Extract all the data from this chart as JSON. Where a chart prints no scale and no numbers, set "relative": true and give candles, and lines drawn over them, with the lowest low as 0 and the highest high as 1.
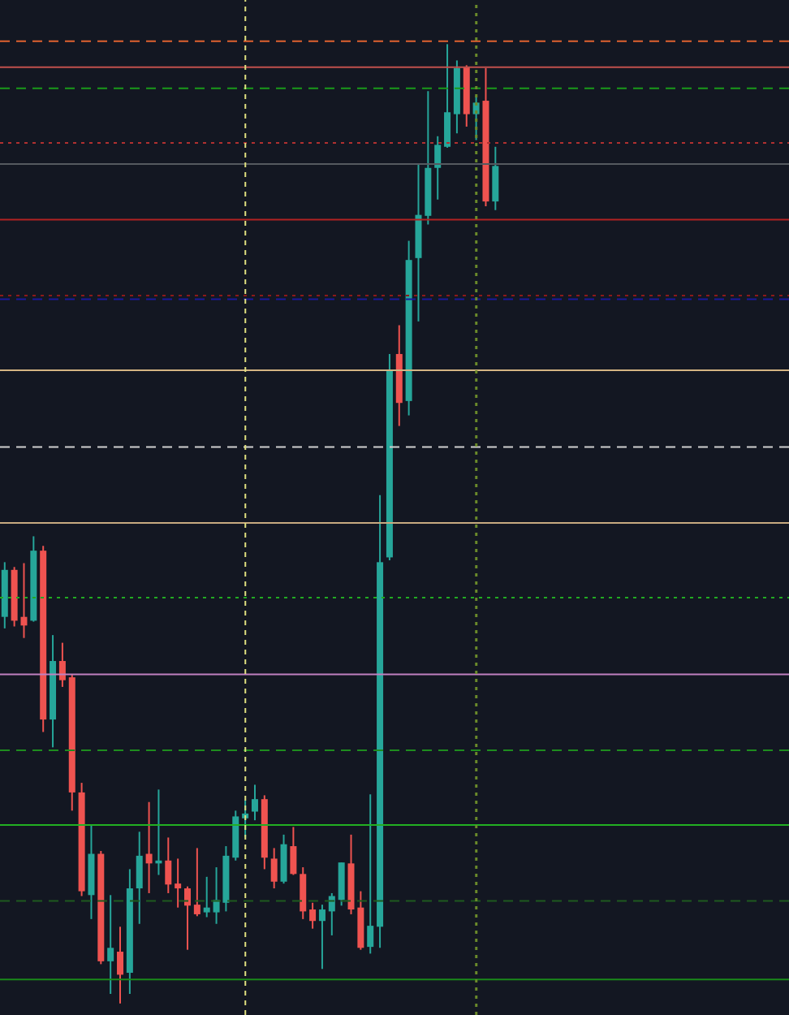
{
  "chart_data": {
    "type": "candlestick",
    "relative": true,
    "categories": [
      null,
      null,
      null,
      null,
      null,
      null,
      null,
      null,
      null,
      null,
      null,
      null,
      null,
      null,
      null,
      null,
      null,
      null,
      null,
      null,
      null,
      null,
      null,
      null,
      null,
      null,
      null,
      null,
      null,
      null,
      null,
      null,
      null,
      null,
      null,
      null,
      null,
      null,
      null,
      null,
      null,
      null,
      null,
      null,
      null,
      null,
      null,
      null,
      null,
      null,
      null,
      null,
      null,
      null,
      null,
      null,
      null,
      null,
      null,
      null,
      null,
      null,
      null,
      null,
      null,
      null,
      null,
      null,
      null,
      null,
      null,
      null,
      null,
      null,
      null,
      null,
      null,
      null,
      null,
      null,
      null,
      null
    ],
    "ohlc": [
      [
        0.403,
        0.46,
        0.391,
        0.452
      ],
      [
        0.452,
        0.455,
        0.393,
        0.399
      ],
      [
        0.403,
        0.459,
        0.381,
        0.394
      ],
      [
        0.399,
        0.487,
        0.398,
        0.472
      ],
      [
        0.472,
        0.477,
        0.283,
        0.296
      ],
      [
        0.296,
        0.384,
        0.267,
        0.357
      ],
      [
        0.357,
        0.376,
        0.33,
        0.337
      ],
      [
        0.34,
        0.343,
        0.201,
        0.22
      ],
      [
        0.22,
        0.23,
        0.112,
        0.117
      ],
      [
        0.113,
        0.186,
        0.088,
        0.156
      ],
      [
        0.156,
        0.159,
        0.041,
        0.044
      ],
      [
        0.044,
        0.113,
        0.01,
        0.058
      ],
      [
        0.054,
        0.08,
        0,
        0.03
      ],
      [
        0.032,
        0.14,
        0.01,
        0.12
      ],
      [
        0.12,
        0.179,
        0.083,
        0.154
      ],
      [
        0.156,
        0.21,
        0.115,
        0.146
      ],
      [
        0.146,
        0.223,
        0.134,
        0.149
      ],
      [
        0.149,
        0.173,
        0.115,
        0.124
      ],
      [
        0.125,
        0.151,
        0.1,
        0.12
      ],
      [
        0.12,
        0.122,
        0.056,
        0.102
      ],
      [
        0.103,
        0.162,
        0.091,
        0.093
      ],
      [
        0.095,
        0.132,
        0.09,
        0.1
      ],
      [
        0.095,
        0.142,
        0.083,
        0.108
      ],
      [
        0.105,
        0.164,
        0.096,
        0.154
      ],
      [
        0.152,
        0.201,
        0.149,
        0.195
      ],
      [
        0.193,
        0.212,
        0.173,
        0.198
      ],
      [
        0.2,
        0.228,
        0.191,
        0.213
      ],
      [
        0.213,
        0.217,
        0.14,
        0.152
      ],
      [
        0.151,
        0.162,
        0.12,
        0.127
      ],
      [
        0.127,
        0.176,
        0.125,
        0.166
      ],
      [
        0.164,
        0.184,
        0.134,
        0.135
      ],
      [
        0.135,
        0.142,
        0.088,
        0.096
      ],
      [
        0.098,
        0.105,
        0.078,
        0.086
      ],
      [
        0.086,
        0.103,
        0.036,
        0.098
      ],
      [
        0.096,
        0.115,
        0.071,
        0.112
      ],
      [
        0.108,
        0.147,
        0.102,
        0.147
      ],
      [
        0.146,
        0.176,
        0.093,
        0.098
      ],
      [
        0.1,
        0.117,
        0.056,
        0.058
      ],
      [
        0.059,
        0.218,
        0.052,
        0.081
      ],
      [
        0.08,
        0.53,
        0.058,
        0.46
      ],
      [
        0.465,
        0.677,
        0.462,
        0.66
      ],
      [
        0.677,
        0.707,
        0.602,
        0.626
      ],
      [
        0.628,
        0.795,
        0.613,
        0.775
      ],
      [
        0.777,
        0.875,
        0.711,
        0.822
      ],
      [
        0.821,
        0.951,
        0.812,
        0.871
      ],
      [
        0.871,
        0.904,
        0.838,
        0.895
      ],
      [
        0.893,
        1,
        0.892,
        0.929
      ],
      [
        0.927,
        0.983,
        0.907,
        0.975
      ],
      [
        0.976,
        0.978,
        0.914,
        0.927
      ],
      [
        0.927,
        0.946,
        0.9,
        0.939
      ],
      [
        0.941,
        0.975,
        0.831,
        0.836
      ],
      [
        0.836,
        0.893,
        0.827,
        0.873
      ],
      null,
      null,
      null,
      null,
      null,
      null,
      null,
      null,
      null,
      null,
      null,
      null,
      null,
      null,
      null,
      null,
      null,
      null,
      null,
      null,
      null,
      null,
      null,
      null,
      null,
      null,
      null,
      null,
      null,
      null
    ],
    "ref_lines": [
      {
        "axis": "y",
        "value": 1.003,
        "color": "#e0622f",
        "line_style": "dashed"
      },
      {
        "axis": "y",
        "value": 0.976,
        "color": "#c0504d",
        "line_style": "solid"
      },
      {
        "axis": "y",
        "value": 0.954,
        "color": "#1a9a1a",
        "line_style": "dashed"
      },
      {
        "axis": "y",
        "value": 0.897,
        "color": "#b03030",
        "line_style": "dotted"
      },
      {
        "axis": "y",
        "value": 0.875,
        "color": "#555a60",
        "line_style": "solid"
      },
      {
        "axis": "y",
        "value": 0.817,
        "color": "#b22222",
        "line_style": "solid"
      },
      {
        "axis": "y",
        "value": 0.738,
        "color": "#8b1a1a",
        "line_style": "dotted"
      },
      {
        "axis": "y",
        "value": 0.734,
        "color": "#1a1a9b",
        "line_style": "dashed"
      },
      {
        "axis": "y",
        "value": 0.66,
        "color": "#d4b483",
        "line_style": "solid"
      },
      {
        "axis": "y",
        "value": 0.58,
        "color": "#d0d0d0",
        "line_style": "dashed"
      },
      {
        "axis": "y",
        "value": 0.501,
        "color": "#c8aa80",
        "line_style": "solid"
      },
      {
        "axis": "y",
        "value": 0.423,
        "color": "#22aa22",
        "line_style": "dotted"
      },
      {
        "axis": "y",
        "value": 0.343,
        "color": "#c080c0",
        "line_style": "solid"
      },
      {
        "axis": "y",
        "value": 0.264,
        "color": "#1e8c1e",
        "line_style": "dashed"
      },
      {
        "axis": "y",
        "value": 0.186,
        "color": "#22b022",
        "line_style": "solid"
      },
      {
        "axis": "y",
        "value": 0.107,
        "color": "#1e5a1e",
        "line_style": "dashed"
      },
      {
        "axis": "y",
        "value": 0.025,
        "color": "#1a8a1a",
        "line_style": "solid"
      }
    ]
  }
}
